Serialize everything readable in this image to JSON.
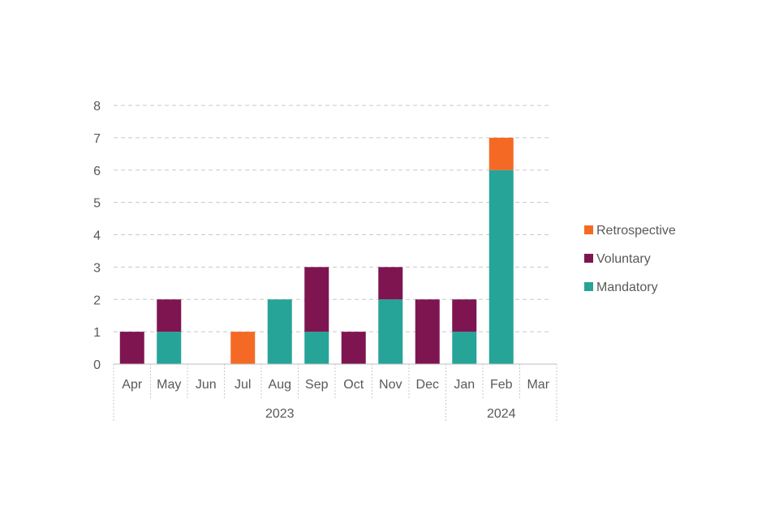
{
  "chart_data": {
    "type": "bar",
    "stacked": true,
    "categories": [
      "Apr",
      "May",
      "Jun",
      "Jul",
      "Aug",
      "Sep",
      "Oct",
      "Nov",
      "Dec",
      "Jan",
      "Feb",
      "Mar"
    ],
    "groups": [
      {
        "label": "2023",
        "from": 0,
        "to": 8
      },
      {
        "label": "2024",
        "from": 9,
        "to": 11
      }
    ],
    "series": [
      {
        "name": "Mandatory",
        "color": "#26A498",
        "values": [
          0,
          1,
          0,
          0,
          2,
          1,
          0,
          2,
          0,
          1,
          6,
          0
        ]
      },
      {
        "name": "Voluntary",
        "color": "#7E1551",
        "values": [
          1,
          1,
          0,
          0,
          0,
          2,
          1,
          1,
          2,
          1,
          0,
          0
        ]
      },
      {
        "name": "Retrospective",
        "color": "#F46A25",
        "values": [
          0,
          0,
          0,
          1,
          0,
          0,
          0,
          0,
          0,
          0,
          1,
          0
        ]
      }
    ],
    "ylim": [
      0,
      8
    ],
    "yticks": [
      0,
      1,
      2,
      3,
      4,
      5,
      6,
      7,
      8
    ],
    "grid": true,
    "legend_position": "right",
    "legend_order": [
      "Retrospective",
      "Voluntary",
      "Mandatory"
    ]
  }
}
